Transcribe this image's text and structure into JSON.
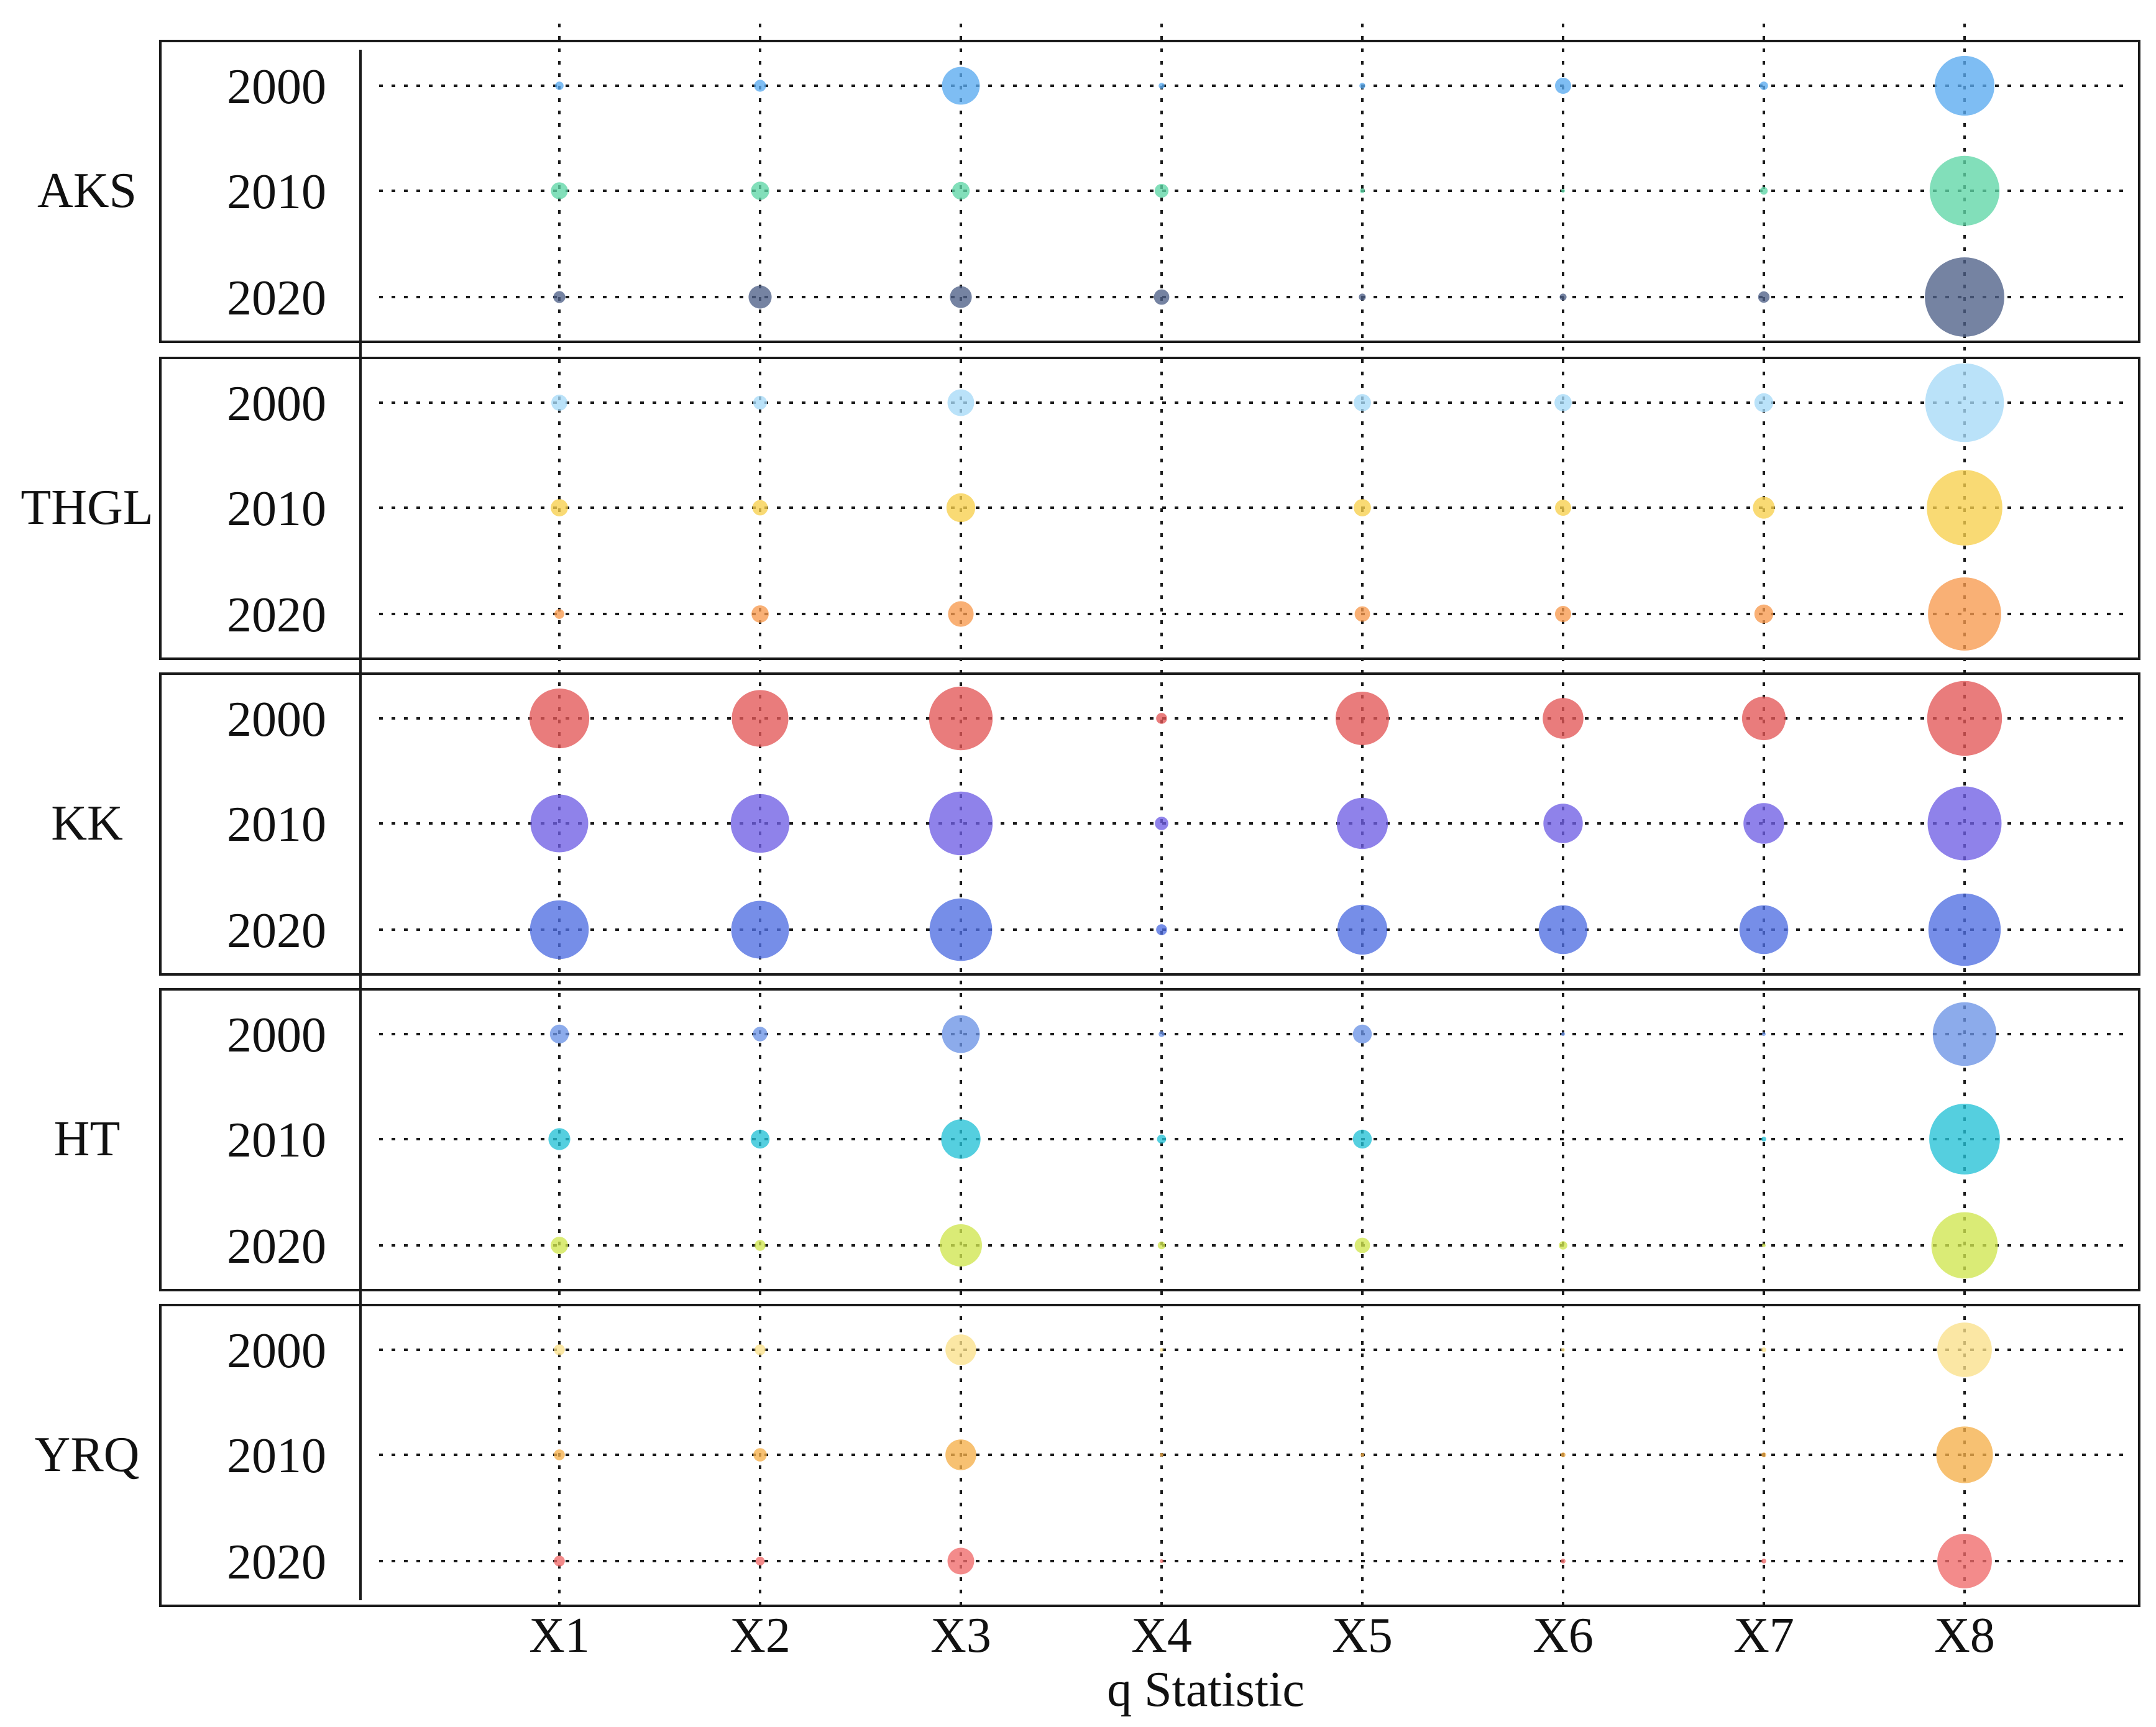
{
  "chart_data": {
    "type": "scatter",
    "subtype": "bubble-matrix",
    "title": "",
    "xlabel": "q Statistic",
    "ylabel": "",
    "x_categories": [
      "X1",
      "X2",
      "X3",
      "X4",
      "X5",
      "X6",
      "X7",
      "X8"
    ],
    "years": [
      "2000",
      "2010",
      "2020"
    ],
    "size_max": 0.6,
    "grid": true,
    "panels": [
      {
        "region": "AKS",
        "series": [
          {
            "year": "2000",
            "color": "#5aaaf0",
            "values": [
              0.006,
              0.012,
              0.12,
              0.003,
              0.003,
              0.022,
              0.006,
              0.3
            ]
          },
          {
            "year": "2010",
            "color": "#5fd6a6",
            "values": [
              0.024,
              0.028,
              0.026,
              0.016,
              0.002,
              0.001,
              0.005,
              0.41
            ]
          },
          {
            "year": "2020",
            "color": "#4e6088",
            "values": [
              0.012,
              0.045,
              0.04,
              0.02,
              0.004,
              0.004,
              0.011,
              0.53
            ]
          }
        ]
      },
      {
        "region": "THGL",
        "series": [
          {
            "year": "2000",
            "color": "#a6daf7",
            "values": [
              0.022,
              0.016,
              0.06,
              0.0,
              0.025,
              0.025,
              0.03,
              0.52
            ]
          },
          {
            "year": "2010",
            "color": "#f7d04d",
            "values": [
              0.025,
              0.02,
              0.07,
              0.0,
              0.025,
              0.022,
              0.04,
              0.48
            ]
          },
          {
            "year": "2020",
            "color": "#f79a4e",
            "values": [
              0.008,
              0.025,
              0.055,
              0.0,
              0.02,
              0.022,
              0.03,
              0.45
            ]
          }
        ]
      },
      {
        "region": "KK",
        "series": [
          {
            "year": "2000",
            "color": "#e35757",
            "values": [
              0.3,
              0.27,
              0.34,
              0.01,
              0.24,
              0.14,
              0.16,
              0.47
            ]
          },
          {
            "year": "2010",
            "color": "#6f5fe4",
            "values": [
              0.28,
              0.29,
              0.34,
              0.015,
              0.22,
              0.13,
              0.14,
              0.46
            ]
          },
          {
            "year": "2020",
            "color": "#4f6ee1",
            "values": [
              0.29,
              0.28,
              0.33,
              0.01,
              0.21,
              0.2,
              0.2,
              0.44
            ]
          }
        ]
      },
      {
        "region": "HT",
        "series": [
          {
            "year": "2000",
            "color": "#6b93e6",
            "values": [
              0.03,
              0.018,
              0.12,
              0.003,
              0.03,
              0.001,
              0.001,
              0.34
            ]
          },
          {
            "year": "2010",
            "color": "#25c2d6",
            "values": [
              0.04,
              0.03,
              0.13,
              0.007,
              0.03,
              0.0,
              0.002,
              0.42
            ]
          },
          {
            "year": "2020",
            "color": "#cfe64f",
            "values": [
              0.025,
              0.01,
              0.15,
              0.005,
              0.02,
              0.006,
              0.001,
              0.37
            ]
          }
        ]
      },
      {
        "region": "YRQ",
        "series": [
          {
            "year": "2000",
            "color": "#fae08a",
            "values": [
              0.01,
              0.01,
              0.08,
              0.0005,
              0.0,
              0.001,
              0.002,
              0.25
            ]
          },
          {
            "year": "2010",
            "color": "#f5b04a",
            "values": [
              0.01,
              0.015,
              0.08,
              0.001,
              0.0005,
              0.002,
              0.002,
              0.27
            ]
          },
          {
            "year": "2020",
            "color": "#f06a6a",
            "values": [
              0.01,
              0.007,
              0.06,
              0.0005,
              0.0,
              0.002,
              0.002,
              0.25
            ]
          }
        ]
      }
    ]
  }
}
